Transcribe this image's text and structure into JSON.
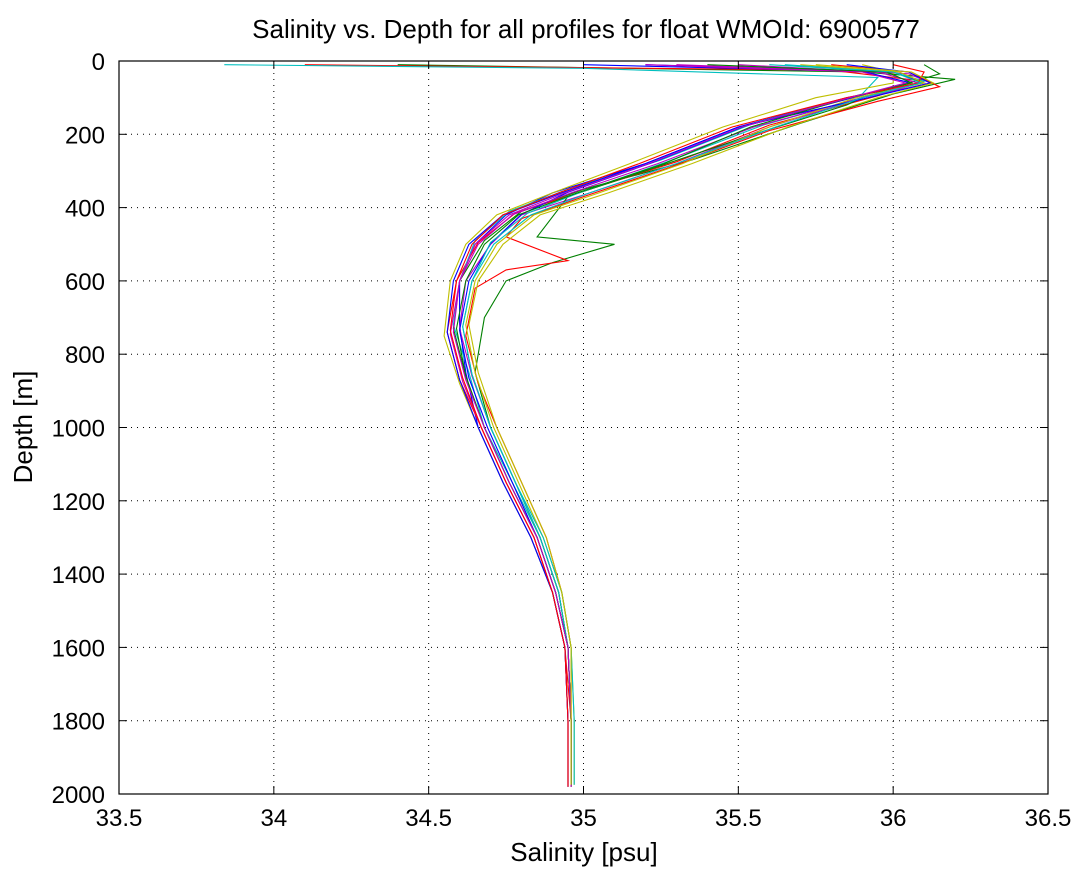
{
  "chart_data": {
    "type": "line",
    "title": "Salinity vs. Depth for all profiles for float WMOId: 6900577",
    "xlabel": "Salinity [psu]",
    "ylabel": "Depth [m]",
    "xlim": [
      33.5,
      36.5
    ],
    "ylim": [
      2000,
      0
    ],
    "y_reversed": true,
    "grid": true,
    "xticks": [
      "33.5",
      "34",
      "34.5",
      "35",
      "35.5",
      "36",
      "36.5"
    ],
    "yticks": [
      "0",
      "200",
      "400",
      "600",
      "800",
      "1000",
      "1200",
      "1400",
      "1600",
      "1800",
      "2000"
    ],
    "series_colors": [
      "#0000ff",
      "#008000",
      "#ff0000",
      "#00bfbf",
      "#bf00bf",
      "#bfbf00"
    ],
    "series": [
      {
        "x": [
          35.2,
          36.0,
          36.1,
          35.85,
          35.5,
          35.2,
          34.9,
          34.75,
          34.65,
          34.6,
          34.6,
          34.62,
          34.66,
          34.74,
          34.83,
          34.9,
          34.94,
          34.95,
          34.95
        ],
        "y": [
          10,
          30,
          60,
          100,
          180,
          280,
          360,
          420,
          500,
          600,
          720,
          850,
          1000,
          1150,
          1300,
          1450,
          1600,
          1800,
          1980
        ]
      },
      {
        "x": [
          34.4,
          35.9,
          36.2,
          36.0,
          35.7,
          35.35,
          35.0,
          34.8,
          34.68,
          34.6,
          34.58,
          34.62,
          34.68,
          34.76,
          34.85,
          34.91,
          34.95,
          34.96,
          34.96
        ],
        "y": [
          10,
          30,
          50,
          90,
          170,
          270,
          350,
          410,
          490,
          600,
          730,
          860,
          1000,
          1150,
          1300,
          1450,
          1600,
          1800,
          1975
        ]
      },
      {
        "x": [
          34.1,
          35.8,
          36.1,
          35.95,
          35.6,
          35.3,
          35.0,
          34.78,
          34.66,
          34.59,
          34.56,
          34.6,
          34.67,
          34.75,
          34.84,
          34.9,
          34.94,
          34.96,
          34.96
        ],
        "y": [
          10,
          25,
          55,
          95,
          175,
          275,
          355,
          415,
          495,
          600,
          740,
          870,
          1000,
          1150,
          1300,
          1450,
          1600,
          1800,
          1980
        ]
      },
      {
        "x": [
          33.84,
          35.0,
          35.95,
          35.9,
          35.55,
          35.25,
          34.95,
          34.76,
          34.65,
          34.6,
          34.58,
          34.63,
          34.68,
          34.77,
          34.86,
          34.92,
          34.95,
          34.96,
          34.96
        ],
        "y": [
          10,
          20,
          45,
          90,
          170,
          270,
          350,
          410,
          490,
          600,
          720,
          850,
          1000,
          1150,
          1300,
          1450,
          1600,
          1800,
          1970
        ]
      },
      {
        "x": [
          35.5,
          36.05,
          36.12,
          35.9,
          35.6,
          35.3,
          35.02,
          34.8,
          34.7,
          34.62,
          34.6,
          34.64,
          34.7,
          34.78,
          34.86,
          34.92,
          34.95,
          34.96,
          34.96
        ],
        "y": [
          10,
          35,
          60,
          100,
          180,
          280,
          360,
          420,
          500,
          600,
          730,
          860,
          1000,
          1150,
          1300,
          1450,
          1600,
          1800,
          1980
        ]
      },
      {
        "x": [
          35.9,
          36.0,
          36.0,
          35.75,
          35.45,
          35.15,
          34.9,
          34.72,
          34.62,
          34.57,
          34.55,
          34.6,
          34.66,
          34.74,
          34.83,
          34.9,
          34.94,
          34.95,
          34.95
        ],
        "y": [
          10,
          30,
          60,
          100,
          180,
          280,
          360,
          420,
          500,
          600,
          750,
          880,
          1000,
          1150,
          1300,
          1450,
          1600,
          1800,
          1980
        ]
      },
      {
        "x": [
          35.0,
          35.9,
          36.05,
          35.88,
          35.52,
          35.22,
          34.95,
          34.8,
          34.7,
          34.63,
          34.6,
          34.63,
          34.69,
          34.77,
          34.85,
          34.91,
          34.95,
          34.96,
          34.96
        ],
        "y": [
          10,
          28,
          58,
          98,
          178,
          278,
          358,
          418,
          498,
          600,
          735,
          865,
          1000,
          1150,
          1300,
          1450,
          1600,
          1800,
          1975
        ]
      },
      {
        "x": [
          36.1,
          36.15,
          36.05,
          35.9,
          35.85,
          35.55,
          35.2,
          34.95,
          34.85,
          35.1,
          34.9,
          34.75,
          34.68,
          34.65,
          34.7,
          34.78,
          34.86,
          34.92,
          34.95,
          34.96,
          34.96
        ],
        "y": [
          10,
          35,
          60,
          100,
          120,
          200,
          300,
          370,
          480,
          500,
          550,
          600,
          700,
          850,
          1000,
          1150,
          1300,
          1450,
          1600,
          1800,
          1980
        ]
      },
      {
        "x": [
          35.8,
          36.05,
          36.15,
          35.95,
          35.6,
          35.28,
          35.0,
          34.8,
          34.75,
          34.95,
          34.75,
          34.65,
          34.62,
          34.66,
          34.72,
          34.8,
          34.88,
          34.93,
          34.96,
          34.96
        ],
        "y": [
          10,
          30,
          70,
          110,
          190,
          290,
          370,
          430,
          480,
          545,
          570,
          620,
          750,
          880,
          1000,
          1150,
          1300,
          1450,
          1600,
          1800
        ]
      },
      {
        "x": [
          35.6,
          36.0,
          36.1,
          35.92,
          35.58,
          35.27,
          35.0,
          34.82,
          34.7,
          34.64,
          34.61,
          34.64,
          34.7,
          34.78,
          34.86,
          34.92,
          34.95,
          34.96,
          34.96
        ],
        "y": [
          10,
          30,
          55,
          95,
          175,
          275,
          355,
          415,
          495,
          600,
          725,
          855,
          1000,
          1150,
          1300,
          1450,
          1600,
          1800,
          1975
        ]
      },
      {
        "x": [
          35.3,
          35.95,
          36.08,
          35.9,
          35.55,
          35.24,
          34.96,
          34.77,
          34.66,
          34.6,
          34.57,
          34.61,
          34.67,
          34.75,
          34.84,
          34.9,
          34.94,
          34.95,
          34.95
        ],
        "y": [
          10,
          30,
          60,
          100,
          180,
          280,
          360,
          420,
          500,
          600,
          745,
          875,
          1000,
          1150,
          1300,
          1450,
          1600,
          1800,
          1980
        ]
      },
      {
        "x": [
          35.7,
          36.02,
          36.1,
          35.88,
          35.6,
          35.32,
          35.05,
          34.84,
          34.72,
          34.65,
          34.62,
          34.65,
          34.71,
          34.79,
          34.87,
          34.93,
          34.96,
          34.97,
          34.97
        ],
        "y": [
          10,
          30,
          60,
          100,
          180,
          280,
          360,
          420,
          500,
          600,
          720,
          850,
          1000,
          1150,
          1300,
          1450,
          1600,
          1800,
          1975
        ]
      },
      {
        "x": [
          35.85,
          36.05,
          36.12,
          35.92,
          35.5,
          35.2,
          34.93,
          34.74,
          34.63,
          34.58,
          34.56,
          34.6,
          34.66,
          34.74,
          34.83,
          34.9,
          34.94,
          34.95,
          34.95
        ],
        "y": [
          10,
          30,
          60,
          100,
          180,
          280,
          360,
          420,
          500,
          600,
          740,
          870,
          1000,
          1150,
          1300,
          1450,
          1600,
          1800,
          1980
        ]
      },
      {
        "x": [
          35.4,
          35.98,
          36.06,
          35.86,
          35.54,
          35.26,
          34.98,
          34.79,
          34.68,
          34.62,
          34.59,
          34.62,
          34.68,
          34.76,
          34.85,
          34.91,
          34.95,
          34.96,
          34.96
        ],
        "y": [
          10,
          30,
          60,
          100,
          180,
          280,
          360,
          420,
          500,
          600,
          730,
          860,
          1000,
          1150,
          1300,
          1450,
          1600,
          1800,
          1975
        ]
      },
      {
        "x": [
          36.0,
          36.1,
          36.08,
          35.85,
          35.48,
          35.18,
          34.92,
          34.74,
          34.64,
          34.59,
          34.57,
          34.61,
          34.67,
          34.75,
          34.84,
          34.9,
          34.94,
          34.95,
          34.95
        ],
        "y": [
          10,
          30,
          60,
          100,
          180,
          280,
          360,
          420,
          500,
          600,
          735,
          865,
          1000,
          1150,
          1300,
          1450,
          1600,
          1800,
          1980
        ]
      },
      {
        "x": [
          35.65,
          36.0,
          36.09,
          35.9,
          35.62,
          35.3,
          35.02,
          34.83,
          34.71,
          34.64,
          34.61,
          34.64,
          34.7,
          34.78,
          34.87,
          34.93,
          34.96,
          34.97,
          34.97
        ],
        "y": [
          10,
          30,
          60,
          100,
          180,
          280,
          360,
          420,
          500,
          600,
          725,
          855,
          1000,
          1150,
          1300,
          1450,
          1600,
          1800,
          1975
        ]
      },
      {
        "x": [
          35.2,
          35.9,
          36.04,
          35.86,
          35.51,
          35.21,
          34.94,
          34.76,
          34.65,
          34.6,
          34.58,
          34.62,
          34.68,
          34.76,
          34.85,
          34.91,
          34.95,
          34.96,
          34.96
        ],
        "y": [
          10,
          30,
          60,
          100,
          180,
          280,
          360,
          420,
          500,
          600,
          740,
          870,
          1000,
          1150,
          1300,
          1450,
          1600,
          1800,
          1980
        ]
      },
      {
        "x": [
          35.75,
          36.06,
          36.13,
          35.95,
          35.66,
          35.35,
          35.08,
          34.86,
          34.74,
          34.66,
          34.63,
          34.66,
          34.72,
          34.8,
          34.88,
          34.93,
          34.96,
          34.96,
          34.96
        ],
        "y": [
          10,
          30,
          60,
          100,
          180,
          280,
          360,
          420,
          500,
          600,
          720,
          850,
          1000,
          1150,
          1300,
          1450,
          1600,
          1800,
          1975
        ]
      }
    ]
  }
}
